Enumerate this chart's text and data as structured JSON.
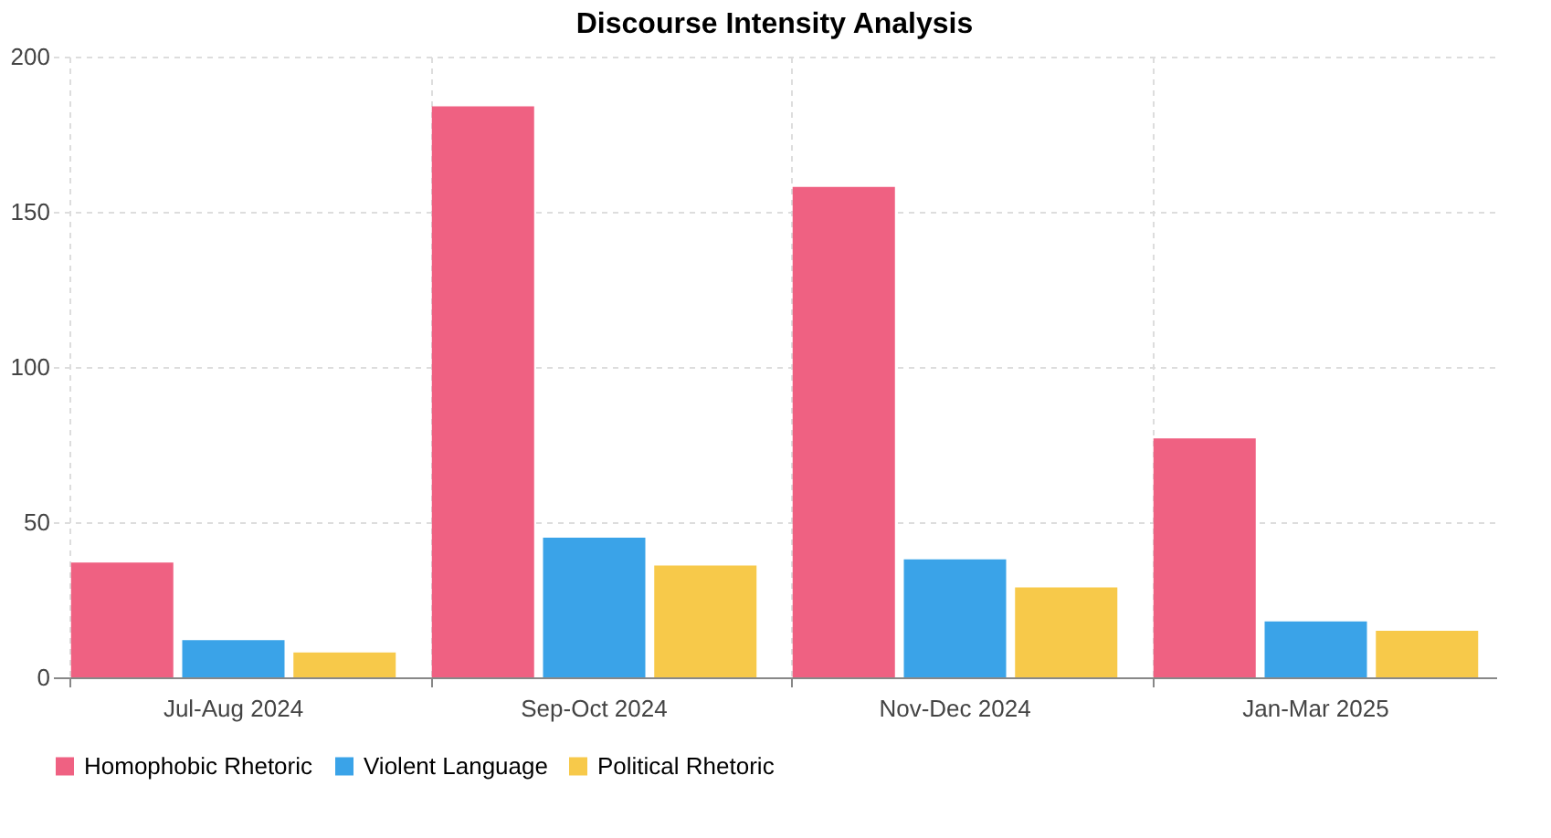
{
  "chart_data": {
    "type": "bar",
    "title": "Discourse Intensity Analysis",
    "categories": [
      "Jul-Aug 2024",
      "Sep-Oct 2024",
      "Nov-Dec 2024",
      "Jan-Mar 2025"
    ],
    "series": [
      {
        "name": "Homophobic Rhetoric",
        "color": "#ef6182",
        "values": [
          37,
          184,
          158,
          77
        ]
      },
      {
        "name": "Violent Language",
        "color": "#3aa3e8",
        "values": [
          12,
          45,
          38,
          18
        ]
      },
      {
        "name": "Political Rhetoric",
        "color": "#f7c94a",
        "values": [
          8,
          36,
          29,
          15
        ]
      }
    ],
    "ylim": [
      0,
      200
    ],
    "yticks": [
      0,
      50,
      100,
      150,
      200
    ],
    "grid": true,
    "legend": "bottom"
  }
}
